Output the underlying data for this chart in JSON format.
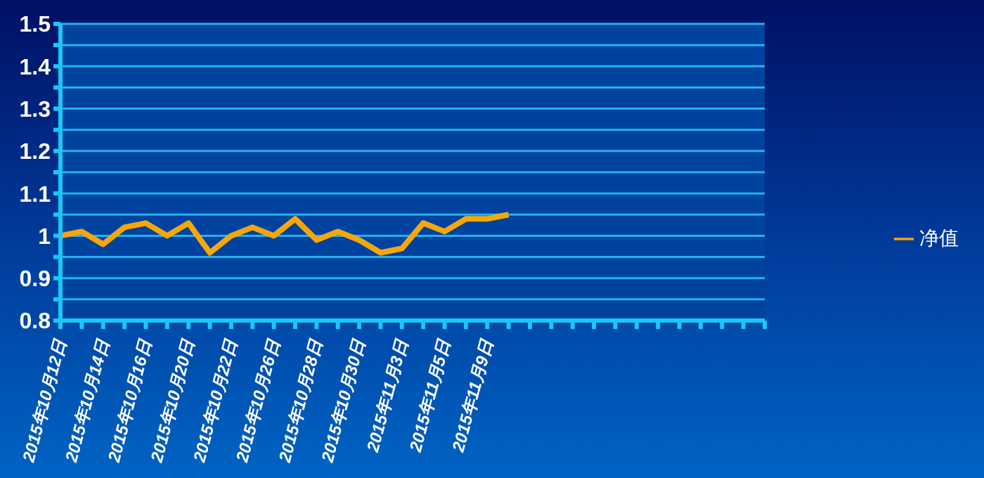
{
  "chart_data": {
    "type": "line",
    "categories": [
      "2015年10月12日",
      null,
      "2015年10月14日",
      null,
      "2015年10月16日",
      null,
      "2015年10月20日",
      null,
      "2015年10月22日",
      null,
      "2015年10月26日",
      null,
      "2015年10月28日",
      null,
      "2015年10月30日",
      null,
      "2015年11月3日",
      null,
      "2015年11月5日",
      null,
      "2015年11月9日",
      null,
      null,
      null,
      null,
      null,
      null,
      null,
      null,
      null,
      null,
      null,
      null,
      null
    ],
    "series": [
      {
        "name": "净值",
        "color": "#f5a70a",
        "values": [
          1.0,
          1.01,
          0.98,
          1.02,
          1.03,
          1.0,
          1.03,
          0.96,
          1.0,
          1.02,
          1.0,
          1.04,
          0.99,
          1.01,
          0.99,
          0.96,
          0.97,
          1.03,
          1.01,
          1.04,
          1.04,
          1.05,
          null,
          null,
          null,
          null,
          null,
          null,
          null,
          null,
          null,
          null,
          null,
          null
        ]
      }
    ],
    "ylim": [
      0.8,
      1.5
    ],
    "yticks": [
      0.8,
      {
        "value": 0.85,
        "label": null
      },
      0.9,
      {
        "value": 0.95,
        "label": null
      },
      {
        "value": 1,
        "label": "1"
      },
      {
        "value": 1.05,
        "label": null
      },
      1.1,
      {
        "value": 1.15,
        "label": null
      },
      1.2,
      {
        "value": 1.25,
        "label": null
      },
      1.3,
      {
        "value": 1.35,
        "label": null
      },
      1.4,
      {
        "value": 1.45,
        "label": null
      },
      1.5
    ],
    "grid": "y",
    "legend": "right",
    "marker": "none",
    "line_style": "solid"
  }
}
